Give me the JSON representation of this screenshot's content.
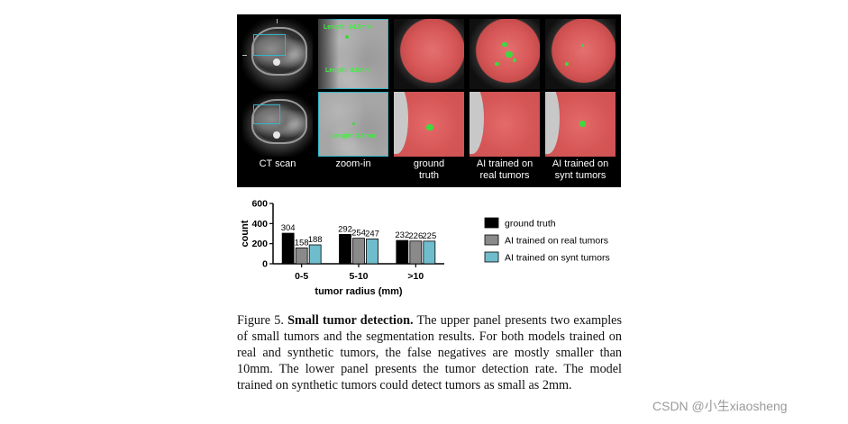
{
  "figure": {
    "column_labels": [
      "CT scan",
      "zoom-in",
      "ground\ntruth",
      "AI trained on\nreal tumors",
      "AI trained on\nsynt tumors"
    ],
    "annotations": [
      "Length: 14.3mm",
      "Length: 8.5mm",
      "Length: 3.4mm"
    ]
  },
  "chart_data": {
    "type": "bar",
    "categories": [
      "0-5",
      "5-10",
      ">10"
    ],
    "series": [
      {
        "name": "ground truth",
        "values": [
          304,
          292,
          232
        ],
        "color": "#000000"
      },
      {
        "name": "AI trained on real tumors",
        "values": [
          158,
          254,
          226
        ],
        "color": "#8a8a8a"
      },
      {
        "name": "AI trained on synt tumors",
        "values": [
          188,
          247,
          225
        ],
        "color": "#6fbccc"
      }
    ],
    "title": "",
    "xlabel": "tumor radius (mm)",
    "ylabel": "count",
    "ylim": [
      0,
      600
    ],
    "yticks": [
      "0",
      "200",
      "400",
      "600"
    ],
    "legend_position": "right",
    "grid": false
  },
  "caption": {
    "prefix": "Figure 5.",
    "bold": "Small tumor detection.",
    "text": "The upper panel presents two examples of small tumors and the segmentation results. For both models trained on real and synthetic tumors, the false negatives are mostly smaller than 10mm. The lower panel presents the tumor detection rate. The model trained on synthetic tumors could detect tumors as small as 2mm."
  },
  "watermark": "CSDN @小生xiaosheng"
}
